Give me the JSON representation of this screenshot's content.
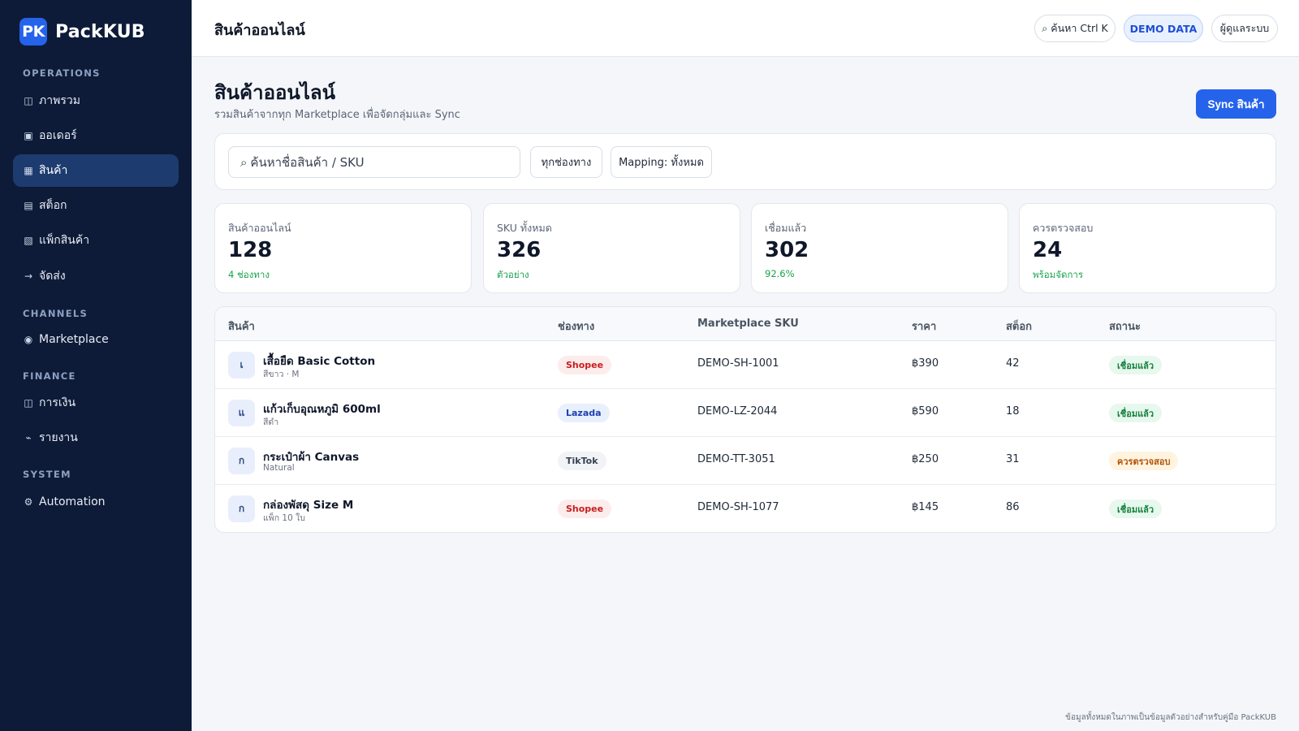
{
  "app": {
    "logo_mark": "PK",
    "name": "PackKUB"
  },
  "sidebar": {
    "sections": [
      {
        "label": "OPERATIONS",
        "items": [
          {
            "icon": "◫",
            "icon_name": "grid-icon",
            "label": "ภาพรวม"
          },
          {
            "icon": "▣",
            "icon_name": "box-icon",
            "label": "ออเดอร์"
          },
          {
            "icon": "▦",
            "icon_name": "product-grid-icon",
            "label": "สินค้า",
            "active": true
          },
          {
            "icon": "▤",
            "icon_name": "list-icon",
            "label": "สต็อก"
          },
          {
            "icon": "▧",
            "icon_name": "package-icon",
            "label": "แพ็กสินค้า"
          },
          {
            "icon": "→",
            "icon_name": "arrow-right-icon",
            "label": "จัดส่ง"
          }
        ]
      },
      {
        "label": "CHANNELS",
        "items": [
          {
            "icon": "◉",
            "icon_name": "target-icon",
            "label": "Marketplace"
          }
        ]
      },
      {
        "label": "FINANCE",
        "items": [
          {
            "icon": "◫",
            "icon_name": "wallet-icon",
            "label": "การเงิน"
          },
          {
            "icon": "⌁",
            "icon_name": "chart-icon",
            "label": "รายงาน"
          }
        ]
      },
      {
        "label": "SYSTEM",
        "items": [
          {
            "icon": "⚙",
            "icon_name": "gear-icon",
            "label": "Automation"
          }
        ]
      }
    ]
  },
  "topbar": {
    "title": "สินค้าออนไลน์",
    "search_label": "⌕ ค้นหา Ctrl K",
    "demo_label": "DEMO DATA",
    "user_label": "ผู้ดูแลระบบ"
  },
  "page": {
    "title": "สินค้าออนไลน์",
    "subtitle": "รวมสินค้าจากทุก Marketplace เพื่อจัดกลุ่มและ Sync",
    "sync_label": "Sync สินค้า"
  },
  "filters": {
    "search_placeholder": "ค้นหาชื่อสินค้า / SKU",
    "search_icon": "⌕",
    "channel_label": "ทุกช่องทาง",
    "mapping_label": "Mapping: ทั้งหมด"
  },
  "stats": [
    {
      "label": "สินค้าออนไลน์",
      "value": "128",
      "note": "4 ช่องทาง"
    },
    {
      "label": "SKU ทั้งหมด",
      "value": "326",
      "note": "ตัวอย่าง"
    },
    {
      "label": "เชื่อมแล้ว",
      "value": "302",
      "note": "92.6%"
    },
    {
      "label": "ควรตรวจสอบ",
      "value": "24",
      "note": "พร้อมจัดการ"
    }
  ],
  "table": {
    "headers": [
      "สินค้า",
      "ช่องทาง",
      "Marketplace SKU",
      "ราคา",
      "สต็อก",
      "สถานะ"
    ],
    "rows": [
      {
        "initial": "เ",
        "name": "เสื้อยืด Basic Cotton",
        "variant": "สีขาว · M",
        "channel": "Shopee",
        "sku": "DEMO-SH-1001",
        "price": "฿390",
        "stock": "42",
        "status": "เชื่อมแล้ว",
        "status_type": "ok"
      },
      {
        "initial": "แ",
        "name": "แก้วเก็บอุณหภูมิ 600ml",
        "variant": "สีดำ",
        "channel": "Lazada",
        "sku": "DEMO-LZ-2044",
        "price": "฿590",
        "stock": "18",
        "status": "เชื่อมแล้ว",
        "status_type": "ok"
      },
      {
        "initial": "ก",
        "name": "กระเป๋าผ้า Canvas",
        "variant": "Natural",
        "channel": "TikTok",
        "sku": "DEMO-TT-3051",
        "price": "฿250",
        "stock": "31",
        "status": "ควรตรวจสอบ",
        "status_type": "warn"
      },
      {
        "initial": "ก",
        "name": "กล่องพัสดุ Size M",
        "variant": "แพ็ก 10 ใบ",
        "channel": "Shopee",
        "sku": "DEMO-SH-1077",
        "price": "฿145",
        "stock": "86",
        "status": "เชื่อมแล้ว",
        "status_type": "ok"
      }
    ]
  },
  "channel_colors": {
    "Shopee": {
      "bg": "#fdecec",
      "fg": "#c81e1e"
    },
    "Lazada": {
      "bg": "#e8effd",
      "fg": "#1e40af"
    },
    "TikTok": {
      "bg": "#f1f3f6",
      "fg": "#374151"
    }
  },
  "status_colors": {
    "ok": {
      "bg": "#e7f8ee",
      "fg": "#15803d"
    },
    "warn": {
      "bg": "#fff4e0",
      "fg": "#b45309"
    }
  },
  "footer": {
    "note": "ข้อมูลทั้งหมดในภาพเป็นข้อมูลตัวอย่างสำหรับคู่มือ PackKUB"
  }
}
